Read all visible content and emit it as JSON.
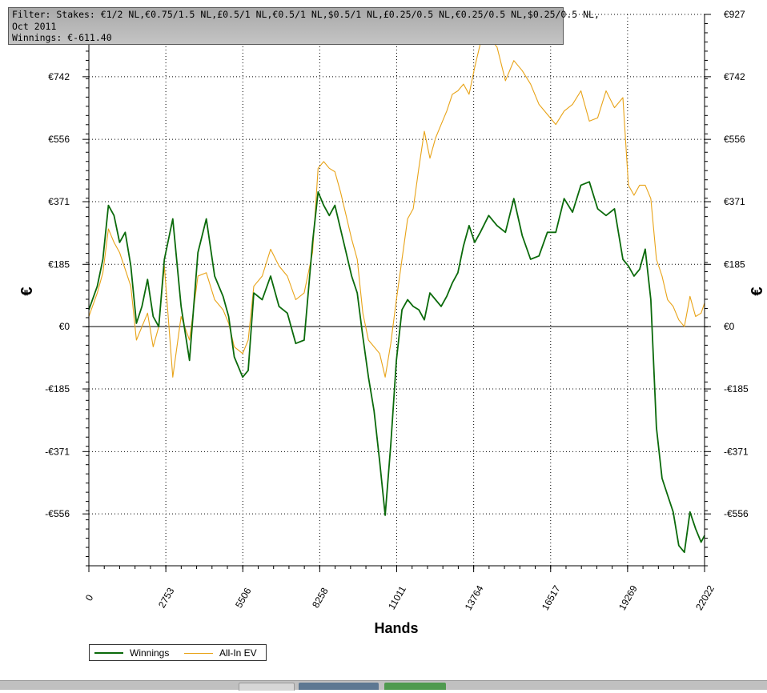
{
  "info": {
    "filter_line": "Filter: Stakes: €1/2 NL,€0.75/1.5 NL,£0.5/1 NL,€0.5/1 NL,$0.5/1 NL,£0.25/0.5 NL,€0.25/0.5 NL,$0.25/0.5 NL,",
    "date_line": "Oct 2011",
    "winnings_line": "Winnings: €-611.40"
  },
  "colors": {
    "winnings": "#0b6a0b",
    "allin_ev": "#e8a317",
    "grid": "#000000",
    "zero_line": "#000000"
  },
  "chart_data": {
    "type": "line",
    "xlabel": "Hands",
    "ylabel": "€",
    "xlim": [
      0,
      22022
    ],
    "ylim": [
      -710,
      927
    ],
    "x_ticks": [
      0,
      2753,
      5506,
      8258,
      11011,
      13764,
      16517,
      19269,
      22022
    ],
    "y_ticks": [
      927,
      742,
      556,
      371,
      185,
      0,
      -185,
      -371,
      -556
    ],
    "y_tick_labels": [
      "€927",
      "€742",
      "€556",
      "€371",
      "€185",
      "€0",
      "-€185",
      "-€371",
      "-€556"
    ],
    "grid": true,
    "legend_position": "bottom-left",
    "series": [
      {
        "name": "Winnings",
        "color": "#0b6a0b",
        "x": [
          0,
          300,
          500,
          700,
          900,
          1100,
          1300,
          1500,
          1700,
          1900,
          2100,
          2300,
          2500,
          2700,
          3000,
          3300,
          3600,
          3900,
          4200,
          4500,
          4800,
          5000,
          5200,
          5500,
          5700,
          5900,
          6200,
          6500,
          6800,
          7100,
          7400,
          7700,
          8000,
          8200,
          8400,
          8600,
          8800,
          9000,
          9200,
          9400,
          9600,
          9800,
          10000,
          10200,
          10400,
          10600,
          10800,
          11000,
          11200,
          11400,
          11600,
          11800,
          12000,
          12200,
          12400,
          12600,
          12800,
          13000,
          13200,
          13400,
          13600,
          13800,
          14000,
          14300,
          14600,
          14900,
          15200,
          15500,
          15800,
          16100,
          16400,
          16700,
          17000,
          17300,
          17600,
          17900,
          18200,
          18500,
          18800,
          19100,
          19300,
          19500,
          19700,
          19900,
          20100,
          20300,
          20500,
          20700,
          20900,
          21100,
          21300,
          21500,
          21700,
          21900,
          22022
        ],
        "values": [
          50,
          120,
          200,
          360,
          330,
          250,
          280,
          180,
          10,
          60,
          140,
          30,
          0,
          200,
          320,
          60,
          -100,
          220,
          320,
          150,
          90,
          30,
          -90,
          -150,
          -130,
          100,
          80,
          150,
          60,
          40,
          -50,
          -40,
          250,
          400,
          360,
          330,
          360,
          290,
          220,
          150,
          100,
          -30,
          -150,
          -250,
          -400,
          -560,
          -350,
          -100,
          50,
          80,
          60,
          50,
          20,
          100,
          80,
          60,
          90,
          130,
          160,
          240,
          300,
          250,
          280,
          330,
          300,
          280,
          380,
          270,
          200,
          210,
          280,
          280,
          380,
          340,
          420,
          430,
          350,
          330,
          350,
          200,
          180,
          150,
          170,
          230,
          80,
          -300,
          -450,
          -500,
          -550,
          -650,
          -670,
          -550,
          -600,
          -640,
          -620
        ]
      },
      {
        "name": "All-In EV",
        "color": "#e8a317",
        "x": [
          0,
          300,
          500,
          700,
          900,
          1100,
          1300,
          1500,
          1700,
          1900,
          2100,
          2300,
          2500,
          2700,
          3000,
          3300,
          3600,
          3900,
          4200,
          4500,
          4800,
          5000,
          5200,
          5500,
          5700,
          5900,
          6200,
          6500,
          6800,
          7100,
          7400,
          7700,
          8000,
          8200,
          8400,
          8600,
          8800,
          9000,
          9200,
          9400,
          9600,
          9800,
          10000,
          10200,
          10400,
          10600,
          10800,
          11000,
          11200,
          11400,
          11600,
          11800,
          12000,
          12200,
          12400,
          12600,
          12800,
          13000,
          13200,
          13400,
          13600,
          13800,
          14000,
          14300,
          14600,
          14900,
          15200,
          15500,
          15800,
          16100,
          16400,
          16700,
          17000,
          17300,
          17600,
          17900,
          18200,
          18500,
          18800,
          19100,
          19300,
          19500,
          19700,
          19900,
          20100,
          20300,
          20500,
          20700,
          20900,
          21100,
          21300,
          21500,
          21700,
          21900,
          22022
        ],
        "values": [
          30,
          100,
          160,
          290,
          250,
          220,
          170,
          120,
          -40,
          0,
          40,
          -60,
          0,
          180,
          -150,
          30,
          -40,
          150,
          160,
          80,
          50,
          10,
          -60,
          -80,
          -40,
          120,
          150,
          230,
          180,
          150,
          80,
          100,
          220,
          470,
          490,
          470,
          460,
          400,
          330,
          260,
          200,
          40,
          -40,
          -60,
          -80,
          -150,
          -50,
          80,
          200,
          320,
          350,
          470,
          580,
          500,
          560,
          600,
          640,
          690,
          700,
          720,
          690,
          770,
          840,
          860,
          830,
          730,
          790,
          760,
          720,
          660,
          630,
          600,
          640,
          660,
          700,
          610,
          620,
          700,
          650,
          680,
          420,
          390,
          420,
          420,
          380,
          200,
          150,
          80,
          60,
          20,
          0,
          90,
          30,
          40,
          70
        ]
      }
    ]
  }
}
